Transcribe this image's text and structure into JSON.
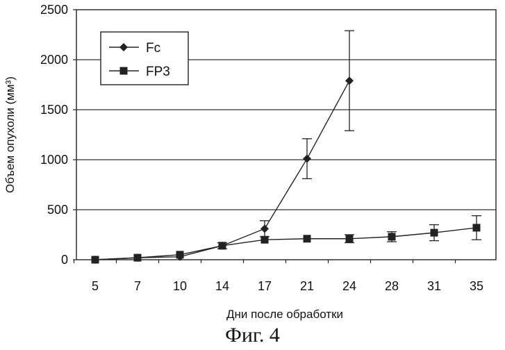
{
  "figure_caption": "Фиг. 4",
  "chart_data": {
    "type": "line",
    "xlabel": "Дни после обработки",
    "ylabel": "Объем опухоли (мм³)",
    "categories": [
      "5",
      "7",
      "10",
      "14",
      "17",
      "21",
      "24",
      "28",
      "31",
      "35"
    ],
    "ylim": [
      0,
      2500
    ],
    "yticks": [
      "0",
      "500",
      "1000",
      "1500",
      "2000",
      "2500"
    ],
    "grid": "horizontal",
    "legend_position": "top-left",
    "series": [
      {
        "name": "Fc",
        "marker": "diamond",
        "values": [
          0,
          20,
          30,
          140,
          310,
          1010,
          1790,
          null,
          null,
          null
        ],
        "errors": [
          null,
          null,
          null,
          null,
          80,
          200,
          500,
          null,
          null,
          null
        ]
      },
      {
        "name": "FP3",
        "marker": "square",
        "values": [
          0,
          20,
          50,
          140,
          200,
          210,
          210,
          230,
          270,
          320
        ],
        "errors": [
          null,
          null,
          null,
          30,
          null,
          null,
          40,
          50,
          80,
          120
        ]
      }
    ],
    "colors": {
      "line": "#222222",
      "grid": "#333333",
      "marker": "#222222"
    }
  }
}
